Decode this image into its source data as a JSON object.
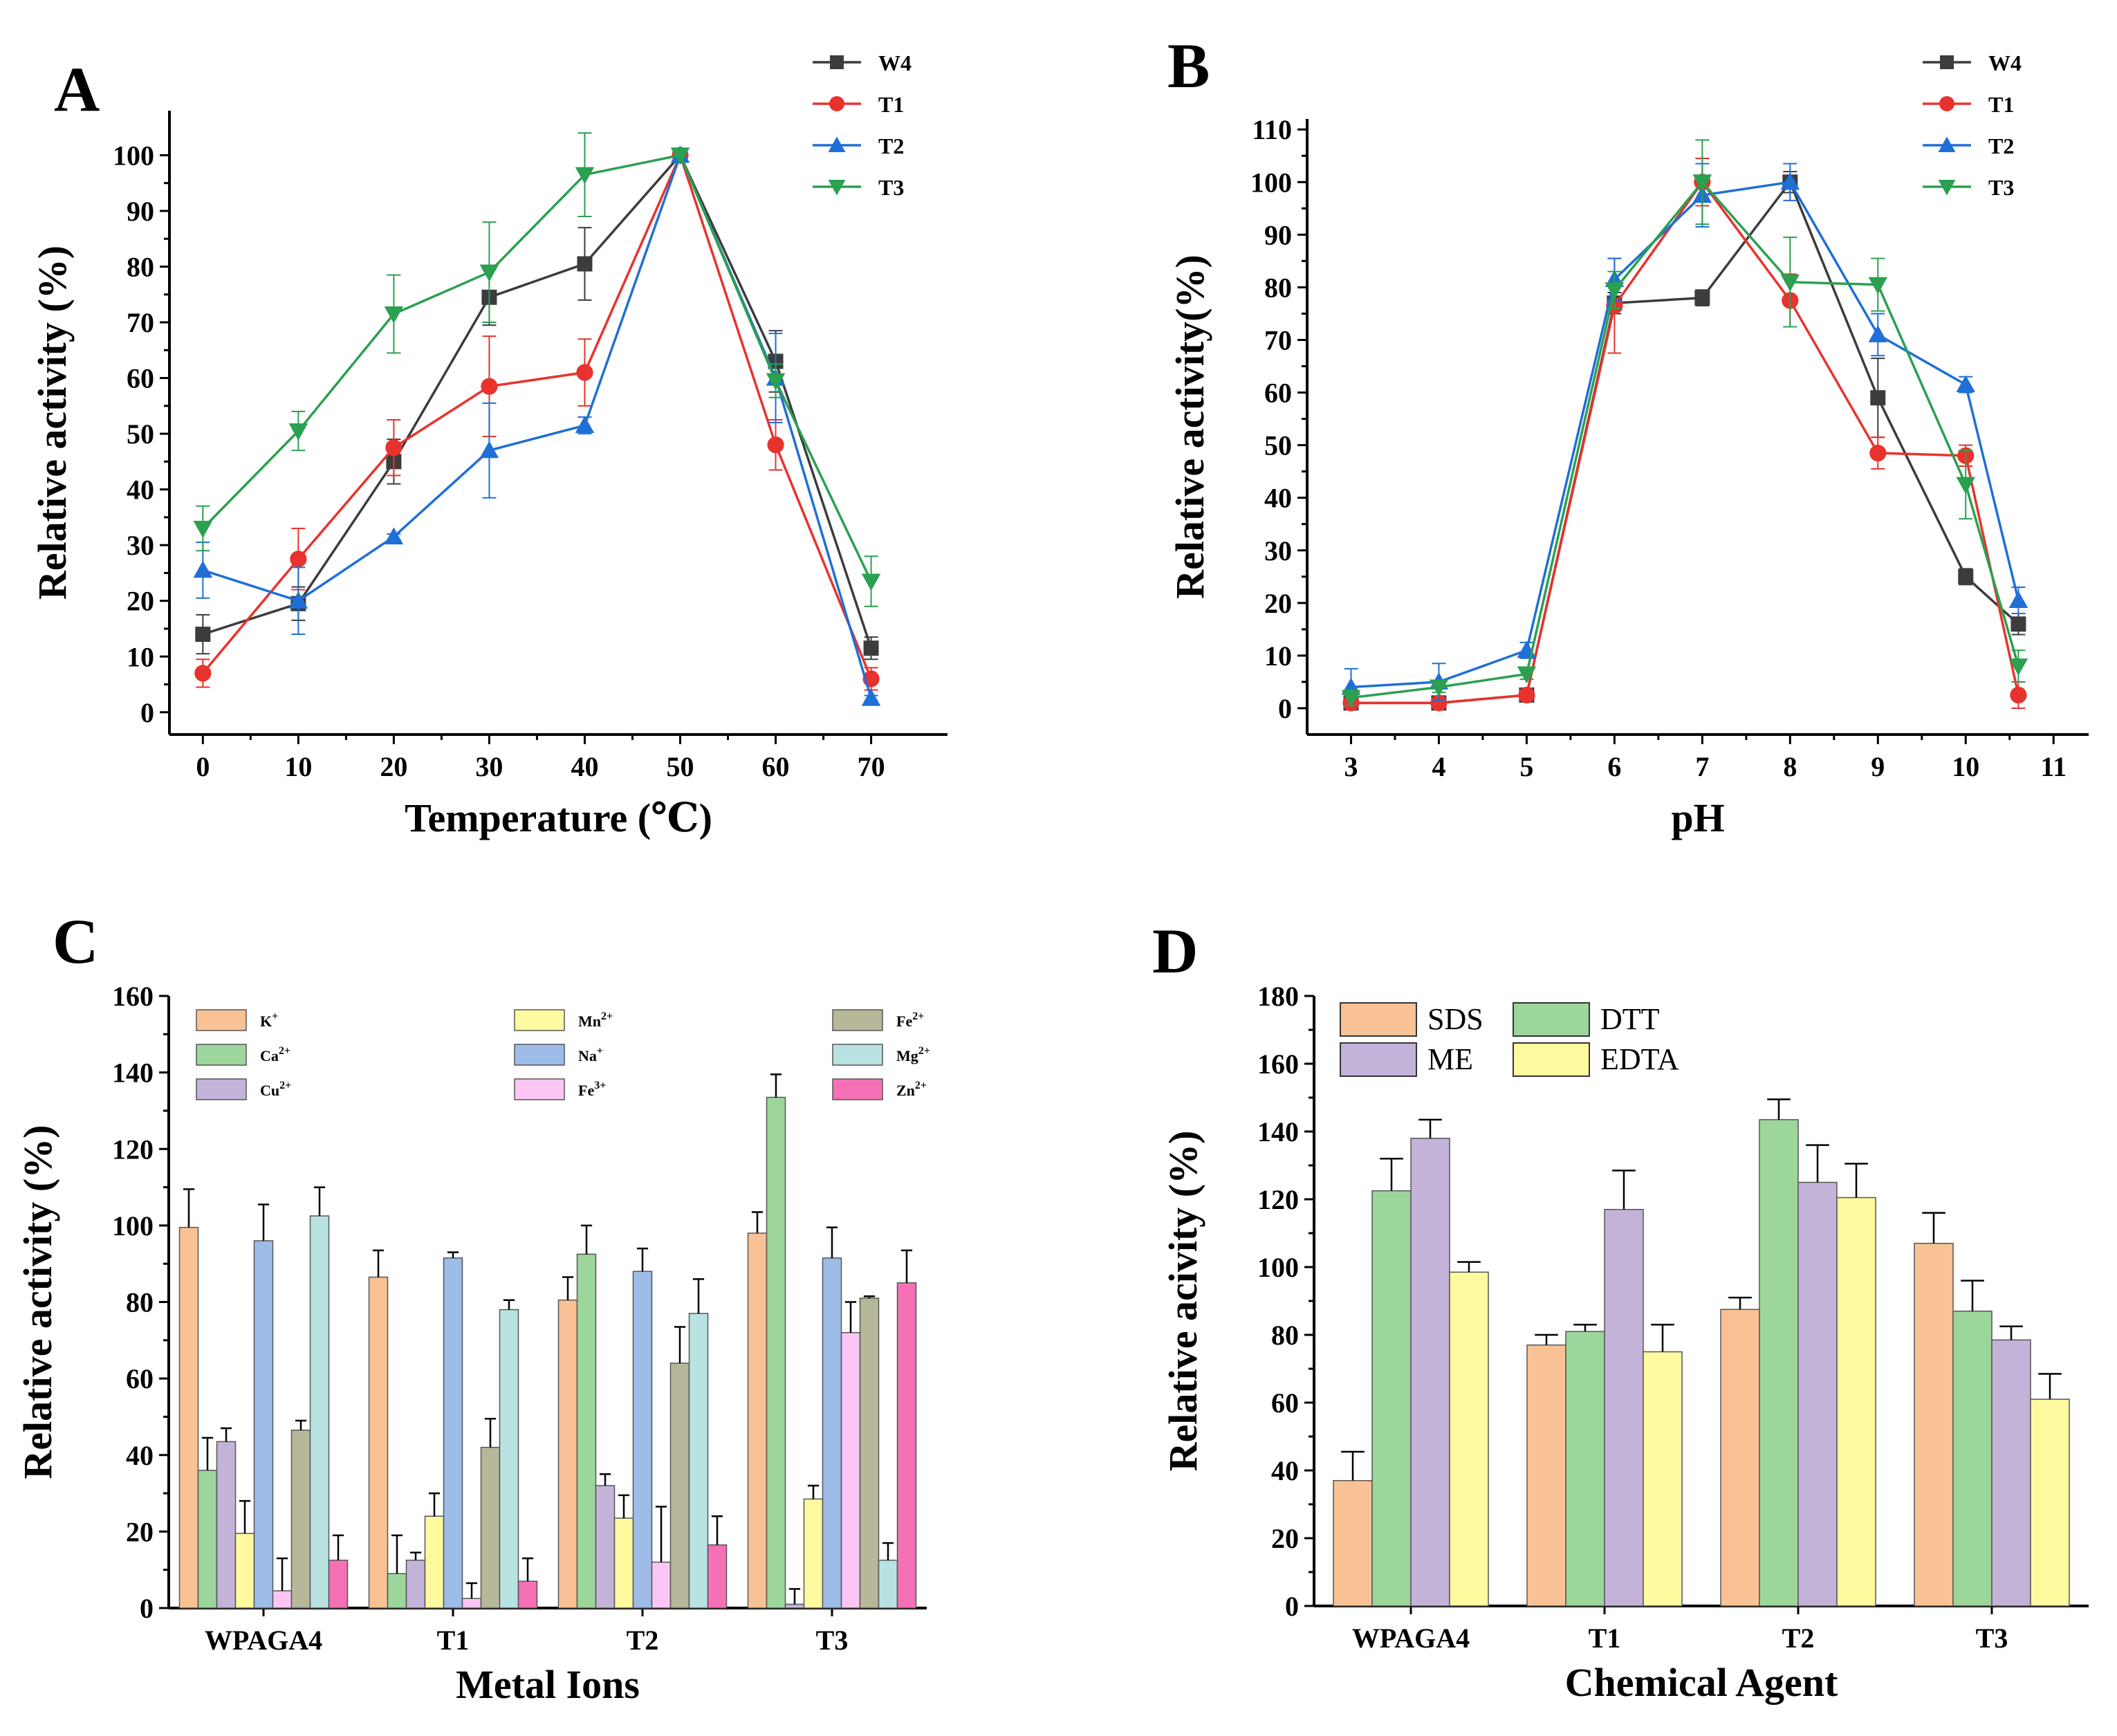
{
  "chart_data": [
    {
      "panel": "A",
      "type": "line",
      "xlabel": "Temperature (℃)",
      "ylabel": "Relative activity (%)",
      "x": [
        0,
        10,
        20,
        30,
        40,
        50,
        60,
        70
      ],
      "xticks": [
        0,
        10,
        20,
        30,
        40,
        50,
        60,
        70
      ],
      "yticks": [
        0,
        10,
        20,
        30,
        40,
        50,
        60,
        70,
        80,
        90,
        100
      ],
      "xlim": [
        -3.5,
        78
      ],
      "ylim": [
        -4,
        108
      ],
      "legend_position": "top-right",
      "series": [
        {
          "name": "W4",
          "color": "#3c3c3c",
          "marker": "square",
          "values": [
            14,
            19.5,
            45,
            74.5,
            80.5,
            100,
            63,
            11.5
          ],
          "errors": [
            3.5,
            3,
            4,
            5,
            6.5,
            0,
            5.5,
            2
          ]
        },
        {
          "name": "T1",
          "color": "#e8322d",
          "marker": "circle",
          "values": [
            7,
            27.5,
            47.5,
            58.5,
            61,
            100,
            48,
            6
          ],
          "errors": [
            2.5,
            5.5,
            5,
            9,
            6,
            0,
            4.5,
            2
          ]
        },
        {
          "name": "T2",
          "color": "#1f6fd6",
          "marker": "triangle-up",
          "values": [
            25.5,
            20,
            31.5,
            47,
            51.5,
            100,
            60,
            2.5
          ],
          "errors": [
            5,
            6,
            0.5,
            8.5,
            1.5,
            0,
            8,
            0.5
          ]
        },
        {
          "name": "T3",
          "color": "#2aa050",
          "marker": "triangle-down",
          "values": [
            33,
            50.5,
            71.5,
            79,
            96.5,
            100,
            59.5,
            23.5
          ],
          "errors": [
            4,
            3.5,
            7,
            9,
            7.5,
            0,
            3,
            4.5
          ]
        }
      ]
    },
    {
      "panel": "B",
      "type": "line",
      "xlabel": "pH",
      "ylabel": "Relative activity(%)",
      "x": [
        3,
        4,
        5,
        6,
        7,
        8,
        9,
        10,
        10.6
      ],
      "xticks": [
        3,
        4,
        5,
        6,
        7,
        8,
        9,
        10,
        11
      ],
      "yticks": [
        0,
        10,
        20,
        30,
        40,
        50,
        60,
        70,
        80,
        90,
        100,
        110
      ],
      "xlim": [
        2.5,
        11.4
      ],
      "ylim": [
        -5,
        112
      ],
      "legend_position": "top-right",
      "series": [
        {
          "name": "W4",
          "color": "#3c3c3c",
          "marker": "square",
          "values": [
            1,
            1,
            2.5,
            77,
            78,
            100,
            59,
            25,
            16
          ],
          "errors": [
            0.5,
            0.5,
            0.5,
            2,
            1.5,
            2,
            7.5,
            1.5,
            2
          ]
        },
        {
          "name": "T1",
          "color": "#e8322d",
          "marker": "circle",
          "values": [
            1,
            1,
            2.5,
            76.5,
            100,
            77.5,
            48.5,
            48,
            2.5
          ],
          "errors": [
            0.5,
            0.5,
            0.5,
            9,
            4.5,
            5,
            3,
            2,
            2.5
          ]
        },
        {
          "name": "T2",
          "color": "#1f6fd6",
          "marker": "triangle-up",
          "values": [
            4,
            5,
            11,
            81.5,
            97.5,
            100,
            71,
            61.5,
            20.5
          ],
          "errors": [
            3.5,
            3.5,
            1.5,
            4,
            6,
            3.5,
            4,
            1.5,
            2.5
          ]
        },
        {
          "name": "T3",
          "color": "#2aa050",
          "marker": "triangle-down",
          "values": [
            2,
            4,
            6.5,
            79.5,
            100,
            81,
            80.5,
            42.5,
            8
          ],
          "errors": [
            1.5,
            1,
            1,
            3.5,
            8,
            8.5,
            5,
            6.5,
            3
          ]
        }
      ]
    },
    {
      "panel": "C",
      "type": "bar",
      "xlabel": "Metal Ions",
      "ylabel": "Relative activity (%)",
      "categories": [
        "WPAGA4",
        "T1",
        "T2",
        "T3"
      ],
      "yticks": [
        0,
        20,
        40,
        60,
        80,
        100,
        120,
        140,
        160
      ],
      "ylim": [
        0,
        160
      ],
      "legend_position": "top-left",
      "series": [
        {
          "name": "K",
          "sup": "+",
          "color": "#f9c294",
          "values": [
            99.5,
            86.5,
            80.5,
            98
          ],
          "errors": [
            10,
            7,
            6,
            5.5
          ]
        },
        {
          "name": "Ca",
          "sup": "2+",
          "color": "#9dd69b",
          "values": [
            36,
            9,
            92.5,
            133.5
          ],
          "errors": [
            8.5,
            10,
            7.5,
            6
          ]
        },
        {
          "name": "Cu",
          "sup": "2+",
          "color": "#c4b3d9",
          "values": [
            43.5,
            12.5,
            32,
            1
          ],
          "errors": [
            3.5,
            2,
            3,
            4
          ]
        },
        {
          "name": "Mn",
          "sup": "2+",
          "color": "#fffa9f",
          "values": [
            19.5,
            24,
            23.5,
            28.5
          ],
          "errors": [
            8.5,
            6,
            6,
            3.5
          ]
        },
        {
          "name": "Na",
          "sup": "+",
          "color": "#9dbde8",
          "values": [
            96,
            91.5,
            88,
            91.5
          ],
          "errors": [
            9.5,
            1.5,
            6,
            8
          ]
        },
        {
          "name": "Fe",
          "sup": "3+",
          "color": "#fbc6f4",
          "values": [
            4.5,
            2.5,
            12,
            72
          ],
          "errors": [
            8.5,
            4,
            14.5,
            8
          ]
        },
        {
          "name": "Fe",
          "sup": "2+",
          "color": "#b7b79a",
          "values": [
            46.5,
            42,
            64,
            81
          ],
          "errors": [
            2.5,
            7.5,
            9.5,
            0.5
          ]
        },
        {
          "name": "Mg",
          "sup": "2+",
          "color": "#b9e3e3",
          "values": [
            102.5,
            78,
            77,
            12.5
          ],
          "errors": [
            7.5,
            2.5,
            9,
            4.5
          ]
        },
        {
          "name": "Zn",
          "sup": "2+",
          "color": "#f571b5",
          "values": [
            12.5,
            7,
            16.5,
            85
          ],
          "errors": [
            6.5,
            6,
            7.5,
            8.5
          ]
        }
      ]
    },
    {
      "panel": "D",
      "type": "bar",
      "xlabel": "Chemical Agent",
      "ylabel": "Relative acivity (%)",
      "categories": [
        "WPAGA4",
        "T1",
        "T2",
        "T3"
      ],
      "yticks": [
        0,
        20,
        40,
        60,
        80,
        100,
        120,
        140,
        160,
        180
      ],
      "ylim": [
        0,
        180
      ],
      "legend_position": "top-left",
      "series": [
        {
          "name": "SDS",
          "color": "#f9c294",
          "values": [
            37,
            77,
            87.5,
            107
          ],
          "errors": [
            8.5,
            3,
            3.5,
            9
          ]
        },
        {
          "name": "DTT",
          "color": "#9dd69b",
          "values": [
            122.5,
            81,
            143.5,
            87
          ],
          "errors": [
            9.5,
            2,
            6,
            9
          ]
        },
        {
          "name": "ME",
          "color": "#c4b3d9",
          "values": [
            138,
            117,
            125,
            78.5
          ],
          "errors": [
            5.5,
            11.5,
            11,
            4
          ]
        },
        {
          "name": "EDTA",
          "color": "#fffa9f",
          "values": [
            98.5,
            75,
            120.5,
            61
          ],
          "errors": [
            3,
            8,
            10,
            7.5
          ]
        }
      ]
    }
  ]
}
